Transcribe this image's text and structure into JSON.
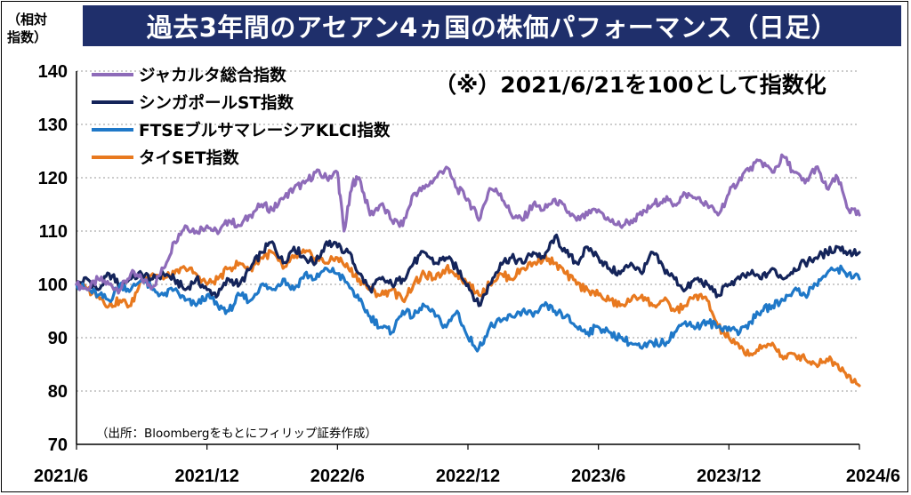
{
  "title": "過去3年間のアセアン4ヵ国の株価パフォーマンス（日足）",
  "y_axis_label": [
    "（相対",
    "指数）"
  ],
  "note": "（※）2021/6/21を100として指数化",
  "source": "（出所：Bloombergをもとにフィリップ証券作成）",
  "chart_data": {
    "type": "line",
    "x_tick_labels": [
      "2021/6",
      "2021/12",
      "2022/6",
      "2022/12",
      "2023/6",
      "2023/12",
      "2024/6"
    ],
    "ylim": [
      70,
      140
    ],
    "y_ticks": [
      140,
      130,
      120,
      110,
      100,
      90,
      80,
      70
    ],
    "grid": "horizontal dashed",
    "legend_position": "top-left",
    "x_range_months": [
      0,
      36
    ],
    "series": [
      {
        "name": "ジャカルタ総合指数",
        "color": "#8e6bb9",
        "points": [
          [
            0,
            100
          ],
          [
            0.5,
            99
          ],
          [
            1,
            101
          ],
          [
            1.5,
            100
          ],
          [
            2,
            99
          ],
          [
            2.5,
            102
          ],
          [
            3,
            101
          ],
          [
            3.5,
            99.5
          ],
          [
            4,
            103
          ],
          [
            4.5,
            108
          ],
          [
            5,
            111
          ],
          [
            5.5,
            110
          ],
          [
            6,
            111
          ],
          [
            6.5,
            109.5
          ],
          [
            7,
            112
          ],
          [
            7.5,
            111
          ],
          [
            8,
            113
          ],
          [
            8.5,
            115
          ],
          [
            9,
            114
          ],
          [
            9.5,
            116
          ],
          [
            10,
            118
          ],
          [
            10.5,
            119
          ],
          [
            11,
            121
          ],
          [
            11.5,
            120
          ],
          [
            12,
            121
          ],
          [
            12.3,
            110
          ],
          [
            12.7,
            119
          ],
          [
            13,
            120
          ],
          [
            13.5,
            113
          ],
          [
            14,
            115
          ],
          [
            14.5,
            112
          ],
          [
            15,
            111
          ],
          [
            15.5,
            117
          ],
          [
            16,
            118
          ],
          [
            16.5,
            120
          ],
          [
            17,
            122
          ],
          [
            17.5,
            118
          ],
          [
            18,
            116
          ],
          [
            18.5,
            112
          ],
          [
            19,
            118
          ],
          [
            19.5,
            117
          ],
          [
            20,
            113
          ],
          [
            20.5,
            112
          ],
          [
            21,
            115
          ],
          [
            21.5,
            114
          ],
          [
            22,
            116
          ],
          [
            22.5,
            114
          ],
          [
            23,
            112
          ],
          [
            23.5,
            113
          ],
          [
            24,
            114
          ],
          [
            24.5,
            112
          ],
          [
            25,
            111
          ],
          [
            25.5,
            112
          ],
          [
            26,
            113
          ],
          [
            26.5,
            115
          ],
          [
            27,
            116
          ],
          [
            27.5,
            115
          ],
          [
            28,
            117
          ],
          [
            28.5,
            116
          ],
          [
            29,
            115
          ],
          [
            29.5,
            113
          ],
          [
            30,
            117
          ],
          [
            30.5,
            120
          ],
          [
            31,
            122
          ],
          [
            31.5,
            123
          ],
          [
            32,
            121
          ],
          [
            32.5,
            124
          ],
          [
            33,
            121
          ],
          [
            33.5,
            119
          ],
          [
            34,
            122
          ],
          [
            34.5,
            118
          ],
          [
            35,
            120
          ],
          [
            35.5,
            114
          ],
          [
            36,
            113
          ]
        ]
      },
      {
        "name": "シンガポールST指数",
        "color": "#14245a",
        "points": [
          [
            0,
            100
          ],
          [
            0.5,
            101
          ],
          [
            1,
            99
          ],
          [
            1.5,
            102
          ],
          [
            2,
            100
          ],
          [
            2.5,
            101
          ],
          [
            3,
            102
          ],
          [
            3.5,
            101
          ],
          [
            4,
            102
          ],
          [
            4.5,
            101
          ],
          [
            5,
            99
          ],
          [
            5.5,
            101
          ],
          [
            6,
            99
          ],
          [
            6.5,
            98
          ],
          [
            7,
            101
          ],
          [
            7.5,
            100
          ],
          [
            8,
            103
          ],
          [
            8.5,
            106
          ],
          [
            9,
            108
          ],
          [
            9.5,
            104
          ],
          [
            10,
            107
          ],
          [
            10.5,
            105
          ],
          [
            11,
            104
          ],
          [
            11.5,
            108
          ],
          [
            12,
            107
          ],
          [
            12.5,
            106
          ],
          [
            13,
            102
          ],
          [
            13.5,
            99
          ],
          [
            14,
            101
          ],
          [
            14.5,
            100
          ],
          [
            15,
            101
          ],
          [
            15.5,
            104
          ],
          [
            16,
            106
          ],
          [
            16.5,
            104
          ],
          [
            17,
            105
          ],
          [
            17.5,
            103
          ],
          [
            18,
            100
          ],
          [
            18.5,
            96
          ],
          [
            19,
            100
          ],
          [
            19.5,
            104
          ],
          [
            20,
            105
          ],
          [
            20.5,
            104
          ],
          [
            21,
            106
          ],
          [
            21.5,
            105
          ],
          [
            22,
            109
          ],
          [
            22.5,
            106
          ],
          [
            23,
            104
          ],
          [
            23.5,
            107
          ],
          [
            24,
            105
          ],
          [
            24.5,
            103
          ],
          [
            25,
            102
          ],
          [
            25.5,
            104
          ],
          [
            26,
            102
          ],
          [
            26.5,
            106
          ],
          [
            27,
            103
          ],
          [
            27.5,
            101
          ],
          [
            28,
            99
          ],
          [
            28.5,
            101
          ],
          [
            29,
            100
          ],
          [
            29.5,
            98
          ],
          [
            30,
            100
          ],
          [
            30.5,
            101
          ],
          [
            31,
            102
          ],
          [
            31.5,
            101
          ],
          [
            32,
            103
          ],
          [
            32.5,
            101
          ],
          [
            33,
            103
          ],
          [
            33.5,
            104
          ],
          [
            34,
            105
          ],
          [
            34.5,
            106
          ],
          [
            35,
            107
          ],
          [
            35.5,
            106
          ],
          [
            36,
            106
          ]
        ]
      },
      {
        "name": "FTSEブルサマレーシアKLCI指数",
        "color": "#1f78c8",
        "points": [
          [
            0,
            100
          ],
          [
            0.5,
            99
          ],
          [
            1,
            98
          ],
          [
            1.5,
            97
          ],
          [
            2,
            100
          ],
          [
            2.5,
            99
          ],
          [
            3,
            101
          ],
          [
            3.5,
            99
          ],
          [
            4,
            98
          ],
          [
            4.5,
            99
          ],
          [
            5,
            97
          ],
          [
            5.5,
            96
          ],
          [
            6,
            98
          ],
          [
            6.5,
            96
          ],
          [
            7,
            95
          ],
          [
            7.5,
            98
          ],
          [
            8,
            97
          ],
          [
            8.5,
            100
          ],
          [
            9,
            99
          ],
          [
            9.5,
            101
          ],
          [
            10,
            99
          ],
          [
            10.5,
            102
          ],
          [
            11,
            101
          ],
          [
            11.5,
            103
          ],
          [
            12,
            102
          ],
          [
            12.5,
            100
          ],
          [
            13,
            97
          ],
          [
            13.5,
            94
          ],
          [
            14,
            92
          ],
          [
            14.5,
            91
          ],
          [
            15,
            95
          ],
          [
            15.5,
            94
          ],
          [
            16,
            96
          ],
          [
            16.5,
            94
          ],
          [
            17,
            92
          ],
          [
            17.5,
            95
          ],
          [
            18,
            90
          ],
          [
            18.5,
            88
          ],
          [
            19,
            92
          ],
          [
            19.5,
            93
          ],
          [
            20,
            94
          ],
          [
            20.5,
            95
          ],
          [
            21,
            94
          ],
          [
            21.5,
            96
          ],
          [
            22,
            95
          ],
          [
            22.5,
            94
          ],
          [
            23,
            92
          ],
          [
            23.5,
            91
          ],
          [
            24,
            92
          ],
          [
            24.5,
            91
          ],
          [
            25,
            90
          ],
          [
            25.5,
            89
          ],
          [
            26,
            88
          ],
          [
            26.5,
            89
          ],
          [
            27,
            89
          ],
          [
            27.5,
            91
          ],
          [
            28,
            93
          ],
          [
            28.5,
            92
          ],
          [
            29,
            93
          ],
          [
            29.5,
            92
          ],
          [
            30,
            92
          ],
          [
            30.5,
            91
          ],
          [
            31,
            93
          ],
          [
            31.5,
            95
          ],
          [
            32,
            96
          ],
          [
            32.5,
            97
          ],
          [
            33,
            99
          ],
          [
            33.5,
            98
          ],
          [
            34,
            100
          ],
          [
            34.5,
            102
          ],
          [
            35,
            103
          ],
          [
            35.5,
            102
          ],
          [
            36,
            101
          ]
        ]
      },
      {
        "name": "タイSET指数",
        "color": "#e8791f",
        "points": [
          [
            0,
            100
          ],
          [
            0.5,
            99
          ],
          [
            1,
            98
          ],
          [
            1.5,
            96
          ],
          [
            2,
            97
          ],
          [
            2.5,
            96
          ],
          [
            3,
            101
          ],
          [
            3.5,
            102
          ],
          [
            4,
            101
          ],
          [
            4.5,
            102
          ],
          [
            5,
            103
          ],
          [
            5.5,
            102
          ],
          [
            6,
            100
          ],
          [
            6.5,
            101
          ],
          [
            7,
            103
          ],
          [
            7.5,
            104
          ],
          [
            8,
            103
          ],
          [
            8.5,
            105
          ],
          [
            9,
            106
          ],
          [
            9.5,
            103
          ],
          [
            10,
            105
          ],
          [
            10.5,
            106
          ],
          [
            11,
            105
          ],
          [
            11.5,
            104
          ],
          [
            12,
            105
          ],
          [
            12.5,
            103
          ],
          [
            13,
            101
          ],
          [
            13.5,
            99
          ],
          [
            14,
            98
          ],
          [
            14.5,
            99
          ],
          [
            15,
            97
          ],
          [
            15.5,
            100
          ],
          [
            16,
            102
          ],
          [
            16.5,
            101
          ],
          [
            17,
            103
          ],
          [
            17.5,
            102
          ],
          [
            18,
            100
          ],
          [
            18.5,
            98
          ],
          [
            19,
            100
          ],
          [
            19.5,
            102
          ],
          [
            20,
            101
          ],
          [
            20.5,
            103
          ],
          [
            21,
            104
          ],
          [
            21.5,
            105
          ],
          [
            22,
            104
          ],
          [
            22.5,
            102
          ],
          [
            23,
            100
          ],
          [
            23.5,
            99
          ],
          [
            24,
            98
          ],
          [
            24.5,
            97
          ],
          [
            25,
            96
          ],
          [
            25.5,
            97
          ],
          [
            26,
            98
          ],
          [
            26.5,
            96
          ],
          [
            27,
            97
          ],
          [
            27.5,
            95
          ],
          [
            28,
            96
          ],
          [
            28.5,
            98
          ],
          [
            29,
            97
          ],
          [
            29.5,
            92
          ],
          [
            30,
            90
          ],
          [
            30.5,
            88
          ],
          [
            31,
            87
          ],
          [
            31.5,
            88
          ],
          [
            32,
            89
          ],
          [
            32.5,
            86
          ],
          [
            33,
            87
          ],
          [
            33.5,
            86
          ],
          [
            34,
            85
          ],
          [
            34.5,
            86
          ],
          [
            35,
            85
          ],
          [
            35.5,
            83
          ],
          [
            36,
            81
          ]
        ]
      }
    ]
  }
}
